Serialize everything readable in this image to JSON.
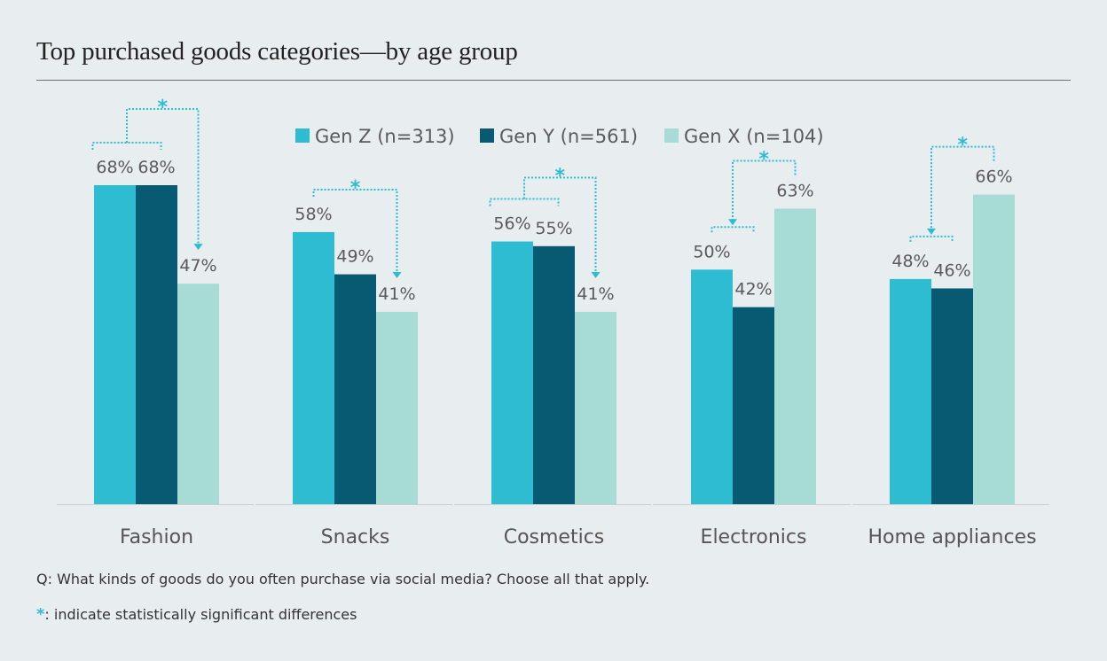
{
  "title": "Top purchased goods categories—by age group",
  "footnotes": {
    "question": "Q: What kinds of goods do you often purchase via social media? Choose all that apply.",
    "star": "*",
    "significance": ": indicate statistically significant differences"
  },
  "chart_data": {
    "type": "bar",
    "categories": [
      "Fashion",
      "Snacks",
      "Cosmetics",
      "Electronics",
      "Home appliances"
    ],
    "series": [
      {
        "name": "Gen Z (n=313)",
        "color": "#2ebcd3",
        "values": [
          68,
          58,
          56,
          50,
          48
        ]
      },
      {
        "name": "Gen Y (n=561)",
        "color": "#085a72",
        "values": [
          68,
          49,
          55,
          42,
          46
        ]
      },
      {
        "name": "Gen X (n=104)",
        "color": "#a6dbd6",
        "values": [
          47,
          41,
          41,
          63,
          66
        ]
      }
    ],
    "value_suffix": "%",
    "ylim": [
      0,
      85
    ],
    "legend_position": "top",
    "significance_marker": "*",
    "significance_color": "#2ebcd3",
    "significance": [
      {
        "category": "Fashion",
        "group": [
          "Gen Z",
          "Gen Y"
        ],
        "vs": "Gen X"
      },
      {
        "category": "Snacks",
        "group": [
          "Gen Z"
        ],
        "vs": "Gen X"
      },
      {
        "category": "Cosmetics",
        "group": [
          "Gen Z",
          "Gen Y"
        ],
        "vs": "Gen X"
      },
      {
        "category": "Electronics",
        "group": [
          "Gen Z",
          "Gen Y"
        ],
        "vs": "Gen X"
      },
      {
        "category": "Home appliances",
        "group": [
          "Gen Z",
          "Gen Y"
        ],
        "vs": "Gen X"
      }
    ]
  }
}
